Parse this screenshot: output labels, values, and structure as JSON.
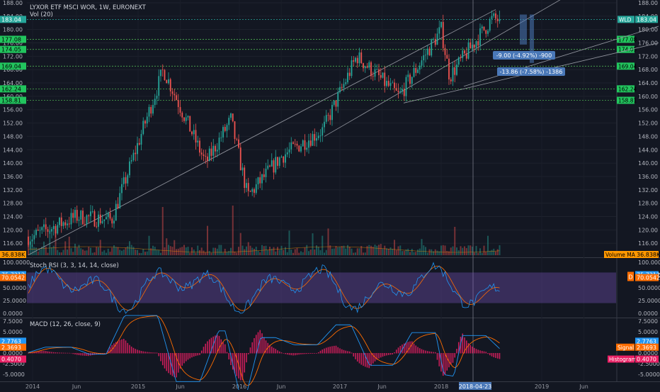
{
  "header": {
    "symbol_line": "LYXOR ETF MSCI WOR, 1W, EURONEXT",
    "volume_line": "Vol (20)"
  },
  "colors": {
    "background": "#131722",
    "up": "#26a69a",
    "down": "#ef5350",
    "price_label": "#22c55e",
    "rsi_k": "#2196f3",
    "rsi_d": "#ff6d00",
    "rsi_band": "#7e57c2",
    "macd": "#2196f3",
    "signal": "#ff6d00",
    "histogram": "#e91e63",
    "measure": "#4a78b8"
  },
  "chart_data": [
    {
      "type": "candlestick",
      "pane": "price",
      "title": "LYXOR ETF MSCI WOR, 1W, EURONEXT",
      "x_tick_labels": [
        "2014",
        "Jun",
        "2015",
        "Jun",
        "2016",
        "Jun",
        "2017",
        "Jun",
        "2018",
        "2018-04-23",
        "2019",
        "Jun"
      ],
      "y_ticks": [
        116,
        120,
        124,
        128,
        132,
        136,
        140,
        144,
        148,
        152,
        156,
        160,
        164,
        168,
        172,
        176,
        180,
        184,
        188
      ],
      "y_tick_labels": [
        "116.00",
        "120.00",
        "124.00",
        "128.00",
        "132.00",
        "136.00",
        "140.00",
        "144.00",
        "148.00",
        "152.00",
        "156.00",
        "160.00",
        "164.00",
        "168.00",
        "172.00",
        "176.00",
        "180.00",
        "184.00",
        "188.00"
      ],
      "ylim": [
        112,
        188
      ],
      "last_price": "183.04",
      "last_price_tag": "WLD",
      "horizontal_levels": [
        "177.08",
        "174.05",
        "169.04",
        "162.24",
        "158.81"
      ],
      "anchor_points": [
        {
          "date": "2014-01",
          "price": 118
        },
        {
          "date": "2014-06",
          "price": 124
        },
        {
          "date": "2014-10",
          "price": 123
        },
        {
          "date": "2015-04",
          "price": 168
        },
        {
          "date": "2015-09",
          "price": 140
        },
        {
          "date": "2015-12",
          "price": 153
        },
        {
          "date": "2016-02",
          "price": 130
        },
        {
          "date": "2016-06",
          "price": 142
        },
        {
          "date": "2016-11",
          "price": 150
        },
        {
          "date": "2017-03",
          "price": 172
        },
        {
          "date": "2017-08",
          "price": 160
        },
        {
          "date": "2018-01",
          "price": 180
        },
        {
          "date": "2018-02",
          "price": 166
        },
        {
          "date": "2018-07",
          "price": 183
        }
      ],
      "measurements": [
        {
          "text": "-9.00 (-4.92%) -900"
        },
        {
          "text": "-13.86 (-7.58%) -1386"
        }
      ]
    },
    {
      "type": "bar",
      "pane": "volume",
      "series_name": "Volume MA",
      "last_value": "36.838K"
    },
    {
      "type": "line",
      "pane": "stoch_rsi",
      "title": "Stoch RSI (3, 3, 14, 14, close)",
      "y_ticks": [
        0,
        25,
        50,
        75,
        100
      ],
      "y_tick_labels": [
        "0.0000",
        "25.0000",
        "50.0000",
        "75.0000",
        "100.0000"
      ],
      "band": [
        20,
        80
      ],
      "values": {
        "k": "75.7212",
        "d": "70.0542"
      },
      "d_marker": "D"
    },
    {
      "type": "line",
      "pane": "macd",
      "title": "MACD (12, 26, close, 9)",
      "y_ticks": [
        -5,
        -2.5,
        0,
        2.5,
        5,
        7.5
      ],
      "y_tick_labels": [
        "-5.0000",
        "-2.5000",
        "0.0000",
        "2.5000",
        "5.0000",
        "7.5000"
      ],
      "values": {
        "macd": "2.7763",
        "signal": "2.3693",
        "histogram": "0.4070"
      },
      "series": [
        {
          "name": "Signal"
        },
        {
          "name": "Histogram"
        }
      ]
    }
  ]
}
